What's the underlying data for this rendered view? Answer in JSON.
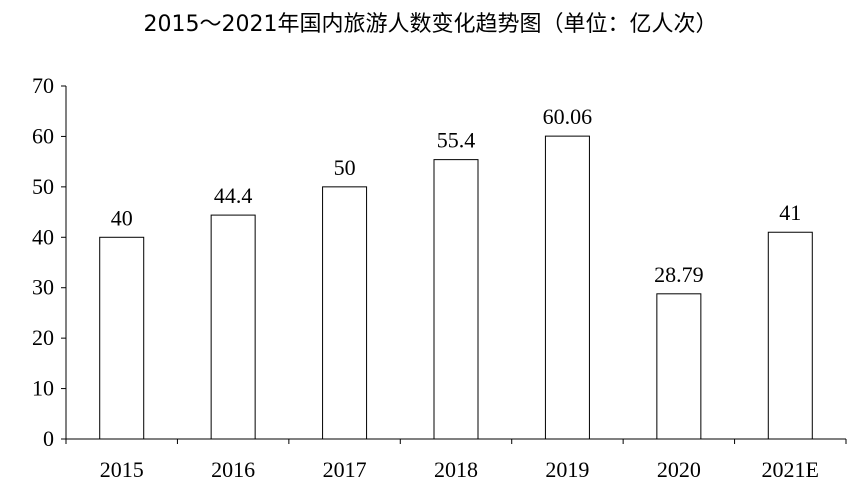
{
  "chart_data": {
    "type": "bar",
    "title": "2015～2021年国内旅游人数变化趋势图（单位：亿人次）",
    "categories": [
      "2015",
      "2016",
      "2017",
      "2018",
      "2019",
      "2020",
      "2021E"
    ],
    "values": [
      40,
      44.4,
      50,
      55.4,
      60.06,
      28.79,
      41
    ],
    "data_labels": [
      "40",
      "44.4",
      "50",
      "55.4",
      "60.06",
      "28.79",
      "41"
    ],
    "ylim": [
      0,
      70
    ],
    "yticks": [
      "0",
      "10",
      "20",
      "30",
      "40",
      "50",
      "60",
      "70"
    ],
    "grid": false,
    "bar_fill": "#ffffff",
    "bar_stroke": "#000000"
  }
}
